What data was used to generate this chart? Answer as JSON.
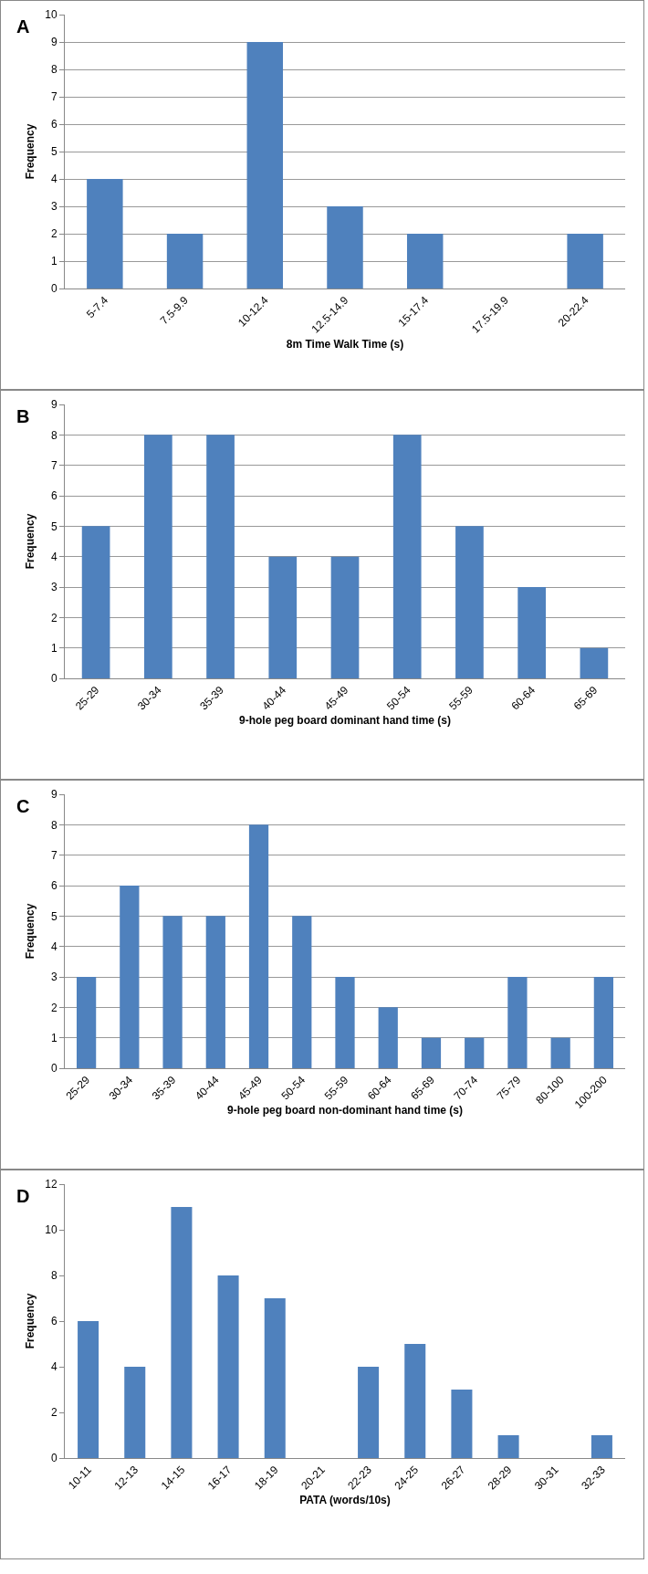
{
  "chart_data": [
    {
      "type": "bar",
      "title": "A",
      "xlabel": "8m Time Walk Time (s)",
      "ylabel": "Frequency",
      "categories": [
        "5-7.4",
        "7.5-9.9",
        "10-12.4",
        "12.5-14.9",
        "15-17.4",
        "17.5-19.9",
        "20-22.4"
      ],
      "values": [
        4,
        2,
        9,
        3,
        2,
        0,
        2
      ],
      "color": "#4f81bd",
      "ylim": [
        0,
        10
      ],
      "yticks": [
        0,
        1,
        2,
        3,
        4,
        5,
        6,
        7,
        8,
        9,
        10
      ],
      "grid": "y",
      "legend": false
    },
    {
      "type": "bar",
      "title": "B",
      "xlabel": "9-hole peg board dominant hand time (s)",
      "ylabel": "Frequency",
      "categories": [
        "25-29",
        "30-34",
        "35-39",
        "40-44",
        "45-49",
        "50-54",
        "55-59",
        "60-64",
        "65-69"
      ],
      "values": [
        5,
        8,
        8,
        4,
        4,
        8,
        5,
        3,
        1
      ],
      "color": "#4f81bd",
      "ylim": [
        0,
        9
      ],
      "yticks": [
        0,
        1,
        2,
        3,
        4,
        5,
        6,
        7,
        8,
        9
      ],
      "grid": "y",
      "legend": false
    },
    {
      "type": "bar",
      "title": "C",
      "xlabel": "9-hole peg board non-dominant hand time (s)",
      "ylabel": "Frequency",
      "categories": [
        "25-29",
        "30-34",
        "35-39",
        "40-44",
        "45-49",
        "50-54",
        "55-59",
        "60-64",
        "65-69",
        "70-74",
        "75-79",
        "80-100",
        "100-200"
      ],
      "values": [
        3,
        6,
        5,
        5,
        8,
        5,
        3,
        2,
        1,
        1,
        3,
        1,
        3
      ],
      "color": "#4f81bd",
      "ylim": [
        0,
        9
      ],
      "yticks": [
        0,
        1,
        2,
        3,
        4,
        5,
        6,
        7,
        8,
        9
      ],
      "grid": "y",
      "legend": false
    },
    {
      "type": "bar",
      "title": "D",
      "xlabel": "PATA (words/10s)",
      "ylabel": "Frequency",
      "categories": [
        "10-11",
        "12-13",
        "14-15",
        "16-17",
        "18-19",
        "20-21",
        "22-23",
        "24-25",
        "26-27",
        "28-29",
        "30-31",
        "32-33"
      ],
      "values": [
        6,
        4,
        11,
        8,
        7,
        0,
        4,
        5,
        3,
        1,
        0,
        1
      ],
      "color": "#4f81bd",
      "ylim": [
        0,
        12
      ],
      "yticks": [
        0,
        2,
        4,
        6,
        8,
        10,
        12
      ],
      "grid": false,
      "legend": false
    }
  ]
}
